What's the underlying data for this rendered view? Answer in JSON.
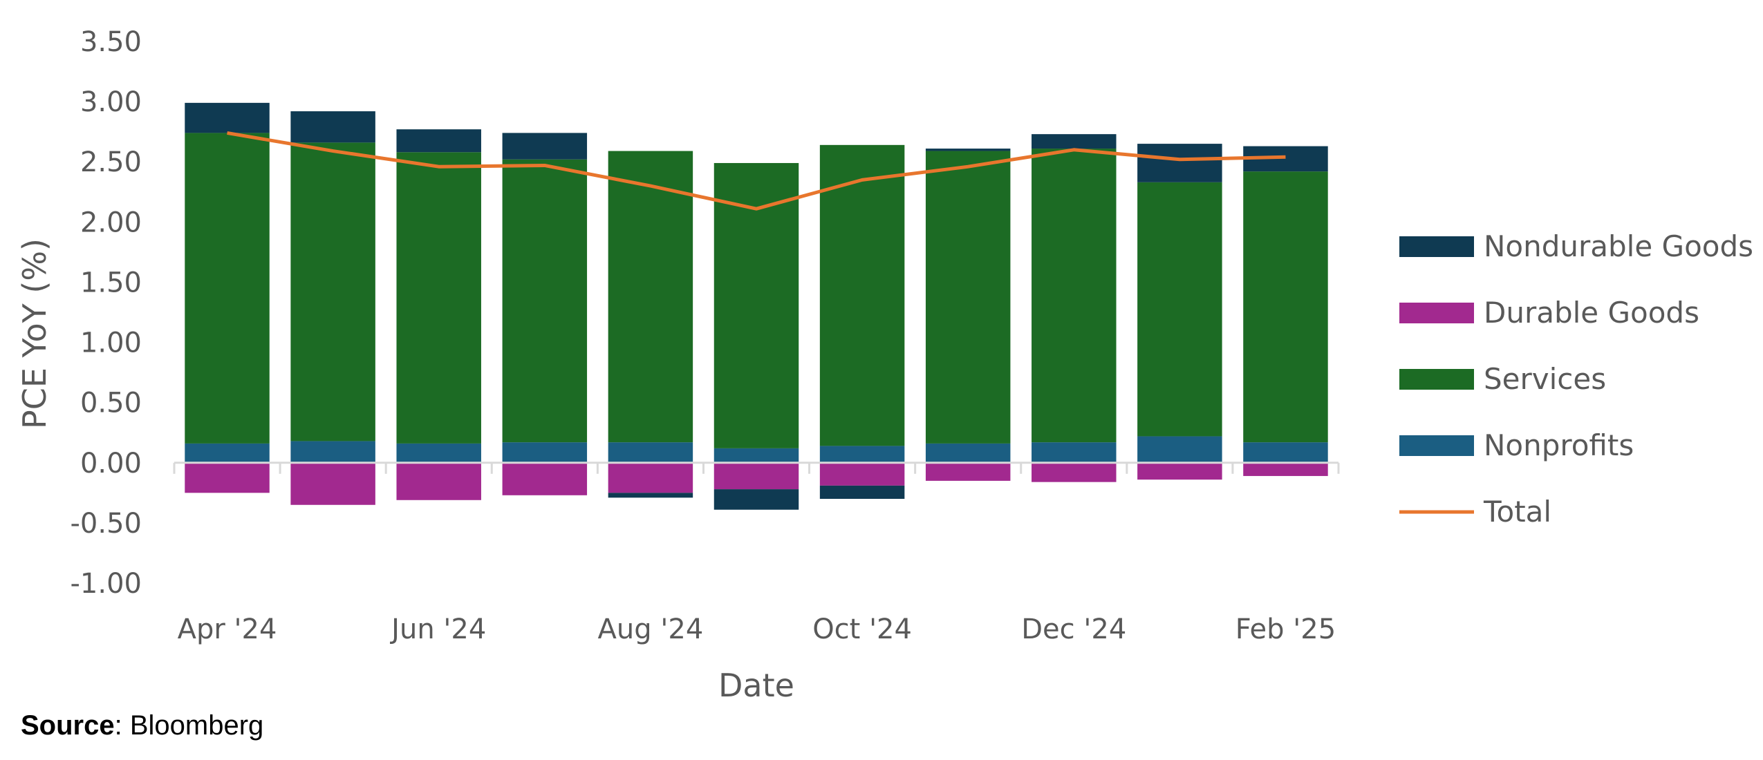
{
  "chart_data": {
    "type": "bar",
    "stacked": true,
    "categories": [
      "Apr '24",
      "May '24",
      "Jun '24",
      "Jul '24",
      "Aug '24",
      "Sep '24",
      "Oct '24",
      "Nov '24",
      "Dec '24",
      "Jan '25",
      "Feb '25"
    ],
    "x_tick_labels": [
      "Apr '24",
      "Jun '24",
      "Aug '24",
      "Oct '24",
      "Dec '24",
      "Feb '25"
    ],
    "xlabel": "Date",
    "ylabel": "PCE YoY (%)",
    "ylim": [
      -1.0,
      3.5
    ],
    "y_ticks": [
      "3.50",
      "3.00",
      "2.50",
      "2.00",
      "1.50",
      "1.00",
      "0.50",
      "0.00",
      "-0.50",
      "-1.00"
    ],
    "grid": false,
    "legend_position": "right",
    "series": [
      {
        "name": "Nondurable Goods",
        "color": "#0f3a52",
        "type": "bar",
        "values": [
          0.25,
          0.26,
          0.19,
          0.22,
          -0.04,
          -0.17,
          -0.11,
          0.02,
          0.12,
          0.32,
          0.21
        ]
      },
      {
        "name": "Durable Goods",
        "color": "#a2298f",
        "type": "bar",
        "values": [
          -0.25,
          -0.35,
          -0.31,
          -0.27,
          -0.25,
          -0.22,
          -0.19,
          -0.15,
          -0.16,
          -0.14,
          -0.11
        ]
      },
      {
        "name": "Services",
        "color": "#1c6b24",
        "type": "bar",
        "values": [
          2.58,
          2.48,
          2.42,
          2.35,
          2.42,
          2.37,
          2.5,
          2.43,
          2.44,
          2.11,
          2.25
        ]
      },
      {
        "name": "Nonprofits",
        "color": "#1b5e82",
        "type": "bar",
        "values": [
          0.16,
          0.18,
          0.16,
          0.17,
          0.17,
          0.12,
          0.14,
          0.16,
          0.17,
          0.22,
          0.17
        ]
      },
      {
        "name": "Total",
        "color": "#e8762d",
        "type": "line",
        "values": [
          2.74,
          2.59,
          2.46,
          2.47,
          2.3,
          2.11,
          2.35,
          2.46,
          2.6,
          2.52,
          2.54
        ]
      }
    ]
  },
  "source": {
    "label": "Source",
    "text": ": Bloomberg"
  }
}
